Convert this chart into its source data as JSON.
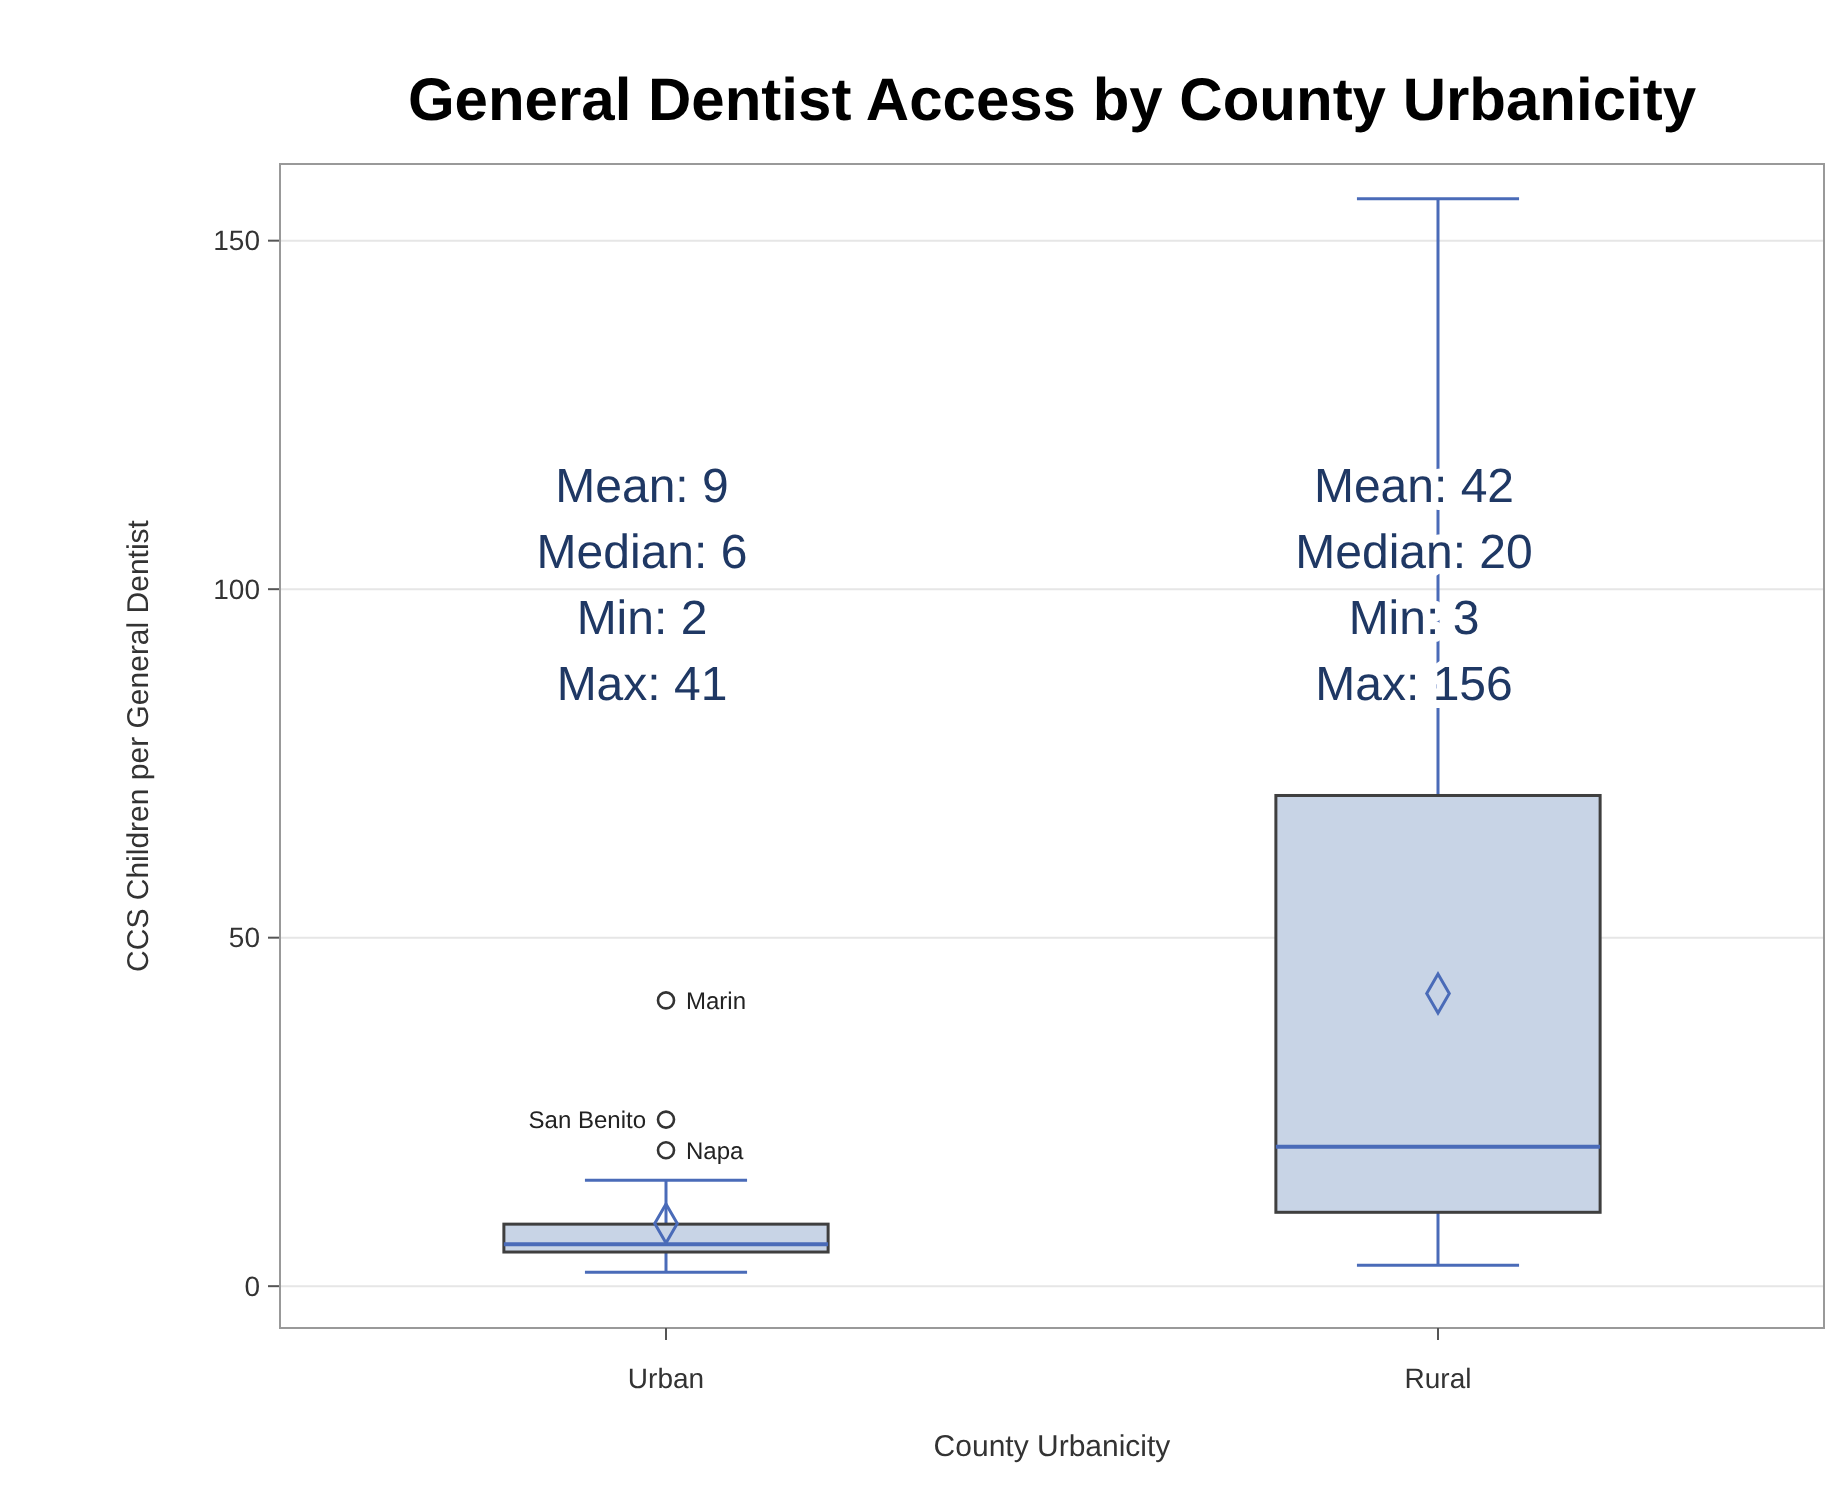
{
  "chart_data": {
    "type": "box",
    "title": "General Dentist Access by County Urbanicity",
    "xlabel": "County Urbanicity",
    "ylabel": "CCS Children per General Dentist",
    "categories": [
      "Urban",
      "Rural"
    ],
    "boxes": [
      {
        "low": 2,
        "q1": 4.9,
        "median": 6,
        "q3": 8.9,
        "high": 15.2,
        "mean": 9,
        "outliers": [
          41,
          23.9,
          19.5
        ]
      },
      {
        "low": 3,
        "q1": 10.6,
        "median": 20,
        "q3": 70.4,
        "high": 156,
        "mean": 42
      }
    ],
    "color": "#c8d4e6",
    "ylim": [
      -6,
      161
    ],
    "yticks": [
      0,
      50,
      100,
      150
    ],
    "grid": "y",
    "marker": "diamond",
    "annotations": [
      "Mean: 9\nMedian: 6\nMin: 2\nMax: 41",
      "Mean: 42\nMedian: 20\nMin: 3\nMax: 156",
      "Marin",
      "San Benito",
      "Napa"
    ]
  }
}
